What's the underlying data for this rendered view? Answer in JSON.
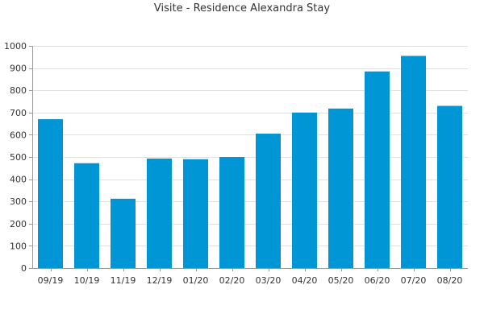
{
  "chart_data": {
    "type": "bar",
    "title": "Visite - Residence Alexandra Stay",
    "xlabel": "",
    "ylabel": "",
    "categories": [
      "09/19",
      "10/19",
      "11/19",
      "12/19",
      "01/20",
      "02/20",
      "03/20",
      "04/20",
      "05/20",
      "06/20",
      "07/20",
      "08/20"
    ],
    "values": [
      670,
      472,
      312,
      493,
      490,
      500,
      605,
      700,
      718,
      885,
      955,
      730
    ],
    "ylim": [
      0,
      1000
    ],
    "yticks": [
      0,
      100,
      200,
      300,
      400,
      500,
      600,
      700,
      800,
      900,
      1000
    ],
    "grid": true,
    "legend": "none",
    "colors": {
      "bar": "#0096d6",
      "grid": "#e0e0e0",
      "axis": "#999999",
      "text": "#333333"
    }
  }
}
